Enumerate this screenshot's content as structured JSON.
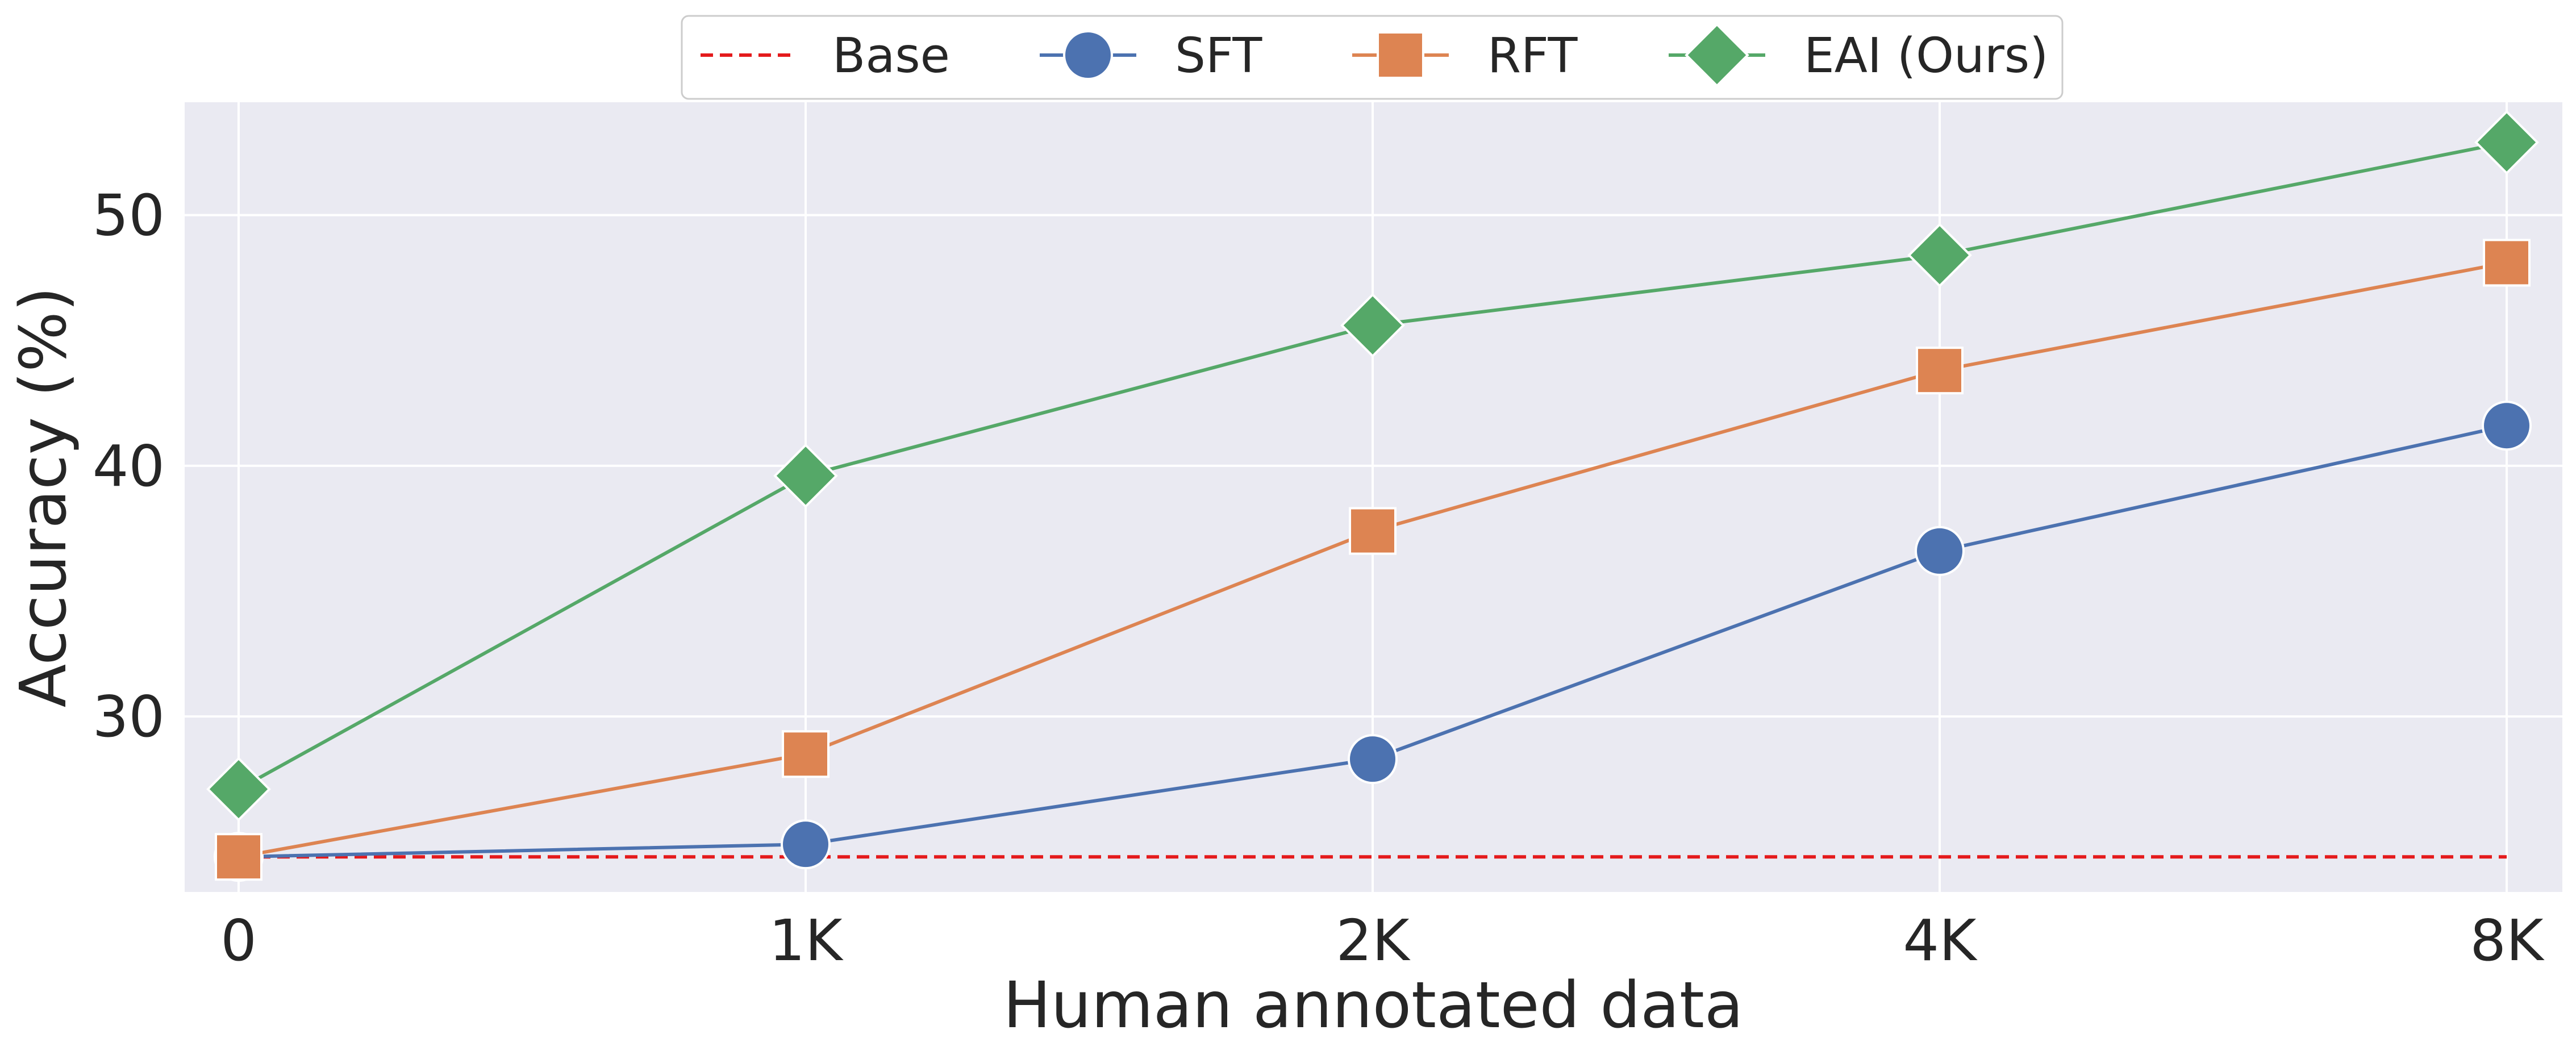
{
  "chart_data": {
    "type": "line",
    "title": "",
    "xlabel": "Human annotated data",
    "ylabel": "Accuracy (%)",
    "categories": [
      "0",
      "1K",
      "2K",
      "4K",
      "8K"
    ],
    "ylim": [
      23,
      54.5
    ],
    "yticks": [
      30,
      40,
      50
    ],
    "grid": true,
    "legend_position": "top-center",
    "series": [
      {
        "name": "Base",
        "marker": "none",
        "style": "dashed",
        "color": "#e41a1c",
        "values": [
          24.4,
          24.4,
          24.4,
          24.4,
          24.4
        ]
      },
      {
        "name": "SFT",
        "marker": "circle",
        "style": "solid",
        "color": "#4c72b0",
        "values": [
          24.4,
          24.9,
          28.3,
          36.6,
          41.6
        ]
      },
      {
        "name": "RFT",
        "marker": "square",
        "style": "solid",
        "color": "#dd8452",
        "values": [
          24.4,
          28.5,
          37.4,
          43.8,
          48.1
        ]
      },
      {
        "name": "EAI (Ours)",
        "marker": "diamond",
        "style": "solid",
        "color": "#55a868",
        "values": [
          27.1,
          39.6,
          45.6,
          48.4,
          52.9
        ]
      }
    ]
  }
}
